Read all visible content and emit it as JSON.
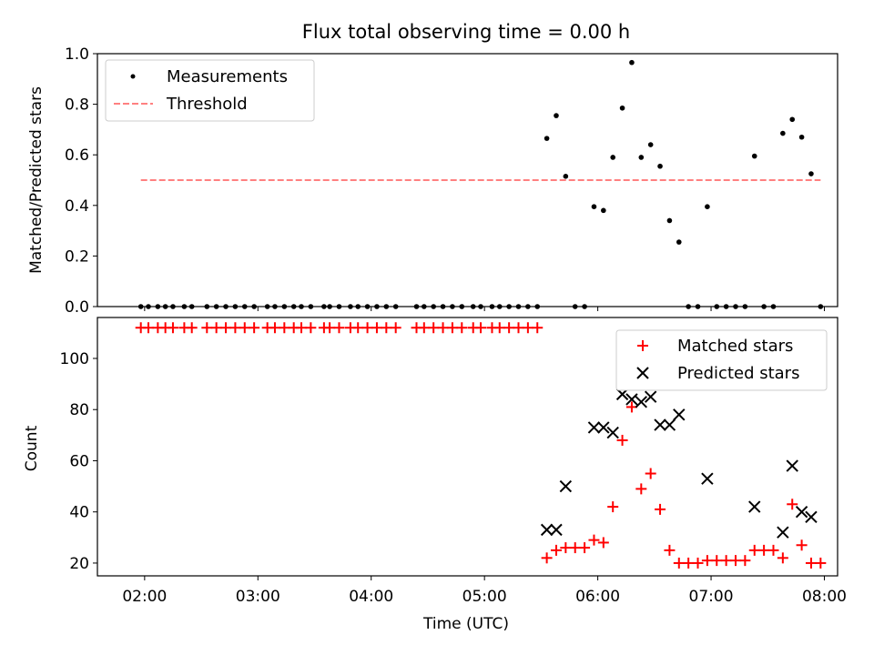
{
  "chart_data": [
    {
      "type": "scatter",
      "title": "Flux total observing time = 0.00 h",
      "xlabel": "",
      "ylabel": "Matched/Predicted stars",
      "xlim": [
        "01:35",
        "08:07"
      ],
      "ylim": [
        0,
        1.0
      ],
      "yticks": [
        "0.0",
        "0.2",
        "0.4",
        "0.6",
        "0.8",
        "1.0"
      ],
      "legend": "top-left",
      "series": [
        {
          "name": "Measurements",
          "color": "#000000",
          "marker": "dot",
          "points": [
            [
              "01:58",
              0
            ],
            [
              "02:02",
              0
            ],
            [
              "02:07",
              0
            ],
            [
              "02:11",
              0
            ],
            [
              "02:15",
              0
            ],
            [
              "02:21",
              0
            ],
            [
              "02:25",
              0
            ],
            [
              "02:33",
              0
            ],
            [
              "02:38",
              0
            ],
            [
              "02:43",
              0
            ],
            [
              "02:48",
              0
            ],
            [
              "02:53",
              0
            ],
            [
              "02:58",
              0
            ],
            [
              "03:05",
              0
            ],
            [
              "03:09",
              0
            ],
            [
              "03:14",
              0
            ],
            [
              "03:19",
              0
            ],
            [
              "03:23",
              0
            ],
            [
              "03:28",
              0
            ],
            [
              "03:35",
              0
            ],
            [
              "03:38",
              0
            ],
            [
              "03:43",
              0
            ],
            [
              "03:49",
              0
            ],
            [
              "03:53",
              0
            ],
            [
              "03:58",
              0
            ],
            [
              "04:03",
              0
            ],
            [
              "04:08",
              0
            ],
            [
              "04:13",
              0
            ],
            [
              "04:24",
              0
            ],
            [
              "04:28",
              0
            ],
            [
              "04:33",
              0
            ],
            [
              "04:38",
              0
            ],
            [
              "04:43",
              0
            ],
            [
              "04:48",
              0
            ],
            [
              "04:54",
              0
            ],
            [
              "04:58",
              0
            ],
            [
              "05:04",
              0
            ],
            [
              "05:08",
              0
            ],
            [
              "05:13",
              0
            ],
            [
              "05:18",
              0
            ],
            [
              "05:23",
              0
            ],
            [
              "05:28",
              0
            ],
            [
              "05:33",
              0.665
            ],
            [
              "05:38",
              0.755
            ],
            [
              "05:43",
              0.515
            ],
            [
              "05:48",
              0
            ],
            [
              "05:53",
              0
            ],
            [
              "05:58",
              0.395
            ],
            [
              "06:03",
              0.38
            ],
            [
              "06:08",
              0.59
            ],
            [
              "06:13",
              0.785
            ],
            [
              "06:18",
              0.965
            ],
            [
              "06:23",
              0.59
            ],
            [
              "06:28",
              0.64
            ],
            [
              "06:33",
              0.555
            ],
            [
              "06:38",
              0.34
            ],
            [
              "06:43",
              0.255
            ],
            [
              "06:48",
              0
            ],
            [
              "06:53",
              0
            ],
            [
              "06:58",
              0.395
            ],
            [
              "07:03",
              0
            ],
            [
              "07:08",
              0
            ],
            [
              "07:13",
              0
            ],
            [
              "07:18",
              0
            ],
            [
              "07:23",
              0.595
            ],
            [
              "07:28",
              0
            ],
            [
              "07:33",
              0
            ],
            [
              "07:38",
              0.685
            ],
            [
              "07:43",
              0.74
            ],
            [
              "07:48",
              0.67
            ],
            [
              "07:53",
              0.525
            ],
            [
              "07:58",
              0
            ]
          ]
        },
        {
          "name": "Threshold",
          "color": "#ff8080",
          "line": "dashed",
          "points": [
            [
              "01:58",
              0.5
            ],
            [
              "07:58",
              0.5
            ]
          ]
        }
      ]
    },
    {
      "type": "scatter",
      "title": "",
      "xlabel": "Time (UTC)",
      "ylabel": "Count",
      "xlim": [
        "01:35",
        "08:07"
      ],
      "ylim": [
        15,
        116
      ],
      "yticks": [
        "20",
        "40",
        "60",
        "80",
        "100"
      ],
      "xticks": [
        "02:00",
        "03:00",
        "04:00",
        "05:00",
        "06:00",
        "07:00",
        "08:00"
      ],
      "legend": "top-right",
      "series": [
        {
          "name": "Matched stars",
          "color": "#ff0000",
          "marker": "plus",
          "points": [
            [
              "01:58",
              112
            ],
            [
              "02:02",
              112
            ],
            [
              "02:07",
              112
            ],
            [
              "02:11",
              112
            ],
            [
              "02:15",
              112
            ],
            [
              "02:21",
              112
            ],
            [
              "02:25",
              112
            ],
            [
              "02:33",
              112
            ],
            [
              "02:38",
              112
            ],
            [
              "02:43",
              112
            ],
            [
              "02:48",
              112
            ],
            [
              "02:53",
              112
            ],
            [
              "02:58",
              112
            ],
            [
              "03:05",
              112
            ],
            [
              "03:09",
              112
            ],
            [
              "03:14",
              112
            ],
            [
              "03:19",
              112
            ],
            [
              "03:23",
              112
            ],
            [
              "03:28",
              112
            ],
            [
              "03:35",
              112
            ],
            [
              "03:38",
              112
            ],
            [
              "03:43",
              112
            ],
            [
              "03:49",
              112
            ],
            [
              "03:53",
              112
            ],
            [
              "03:58",
              112
            ],
            [
              "04:03",
              112
            ],
            [
              "04:08",
              112
            ],
            [
              "04:13",
              112
            ],
            [
              "04:24",
              112
            ],
            [
              "04:28",
              112
            ],
            [
              "04:33",
              112
            ],
            [
              "04:38",
              112
            ],
            [
              "04:43",
              112
            ],
            [
              "04:48",
              112
            ],
            [
              "04:54",
              112
            ],
            [
              "04:58",
              112
            ],
            [
              "05:04",
              112
            ],
            [
              "05:08",
              112
            ],
            [
              "05:13",
              112
            ],
            [
              "05:18",
              112
            ],
            [
              "05:23",
              112
            ],
            [
              "05:28",
              112
            ],
            [
              "05:33",
              22
            ],
            [
              "05:38",
              25
            ],
            [
              "05:43",
              26
            ],
            [
              "05:48",
              26
            ],
            [
              "05:53",
              26
            ],
            [
              "05:58",
              29
            ],
            [
              "06:03",
              28
            ],
            [
              "06:08",
              42
            ],
            [
              "06:13",
              68
            ],
            [
              "06:18",
              81
            ],
            [
              "06:23",
              49
            ],
            [
              "06:28",
              55
            ],
            [
              "06:33",
              41
            ],
            [
              "06:38",
              25
            ],
            [
              "06:43",
              20
            ],
            [
              "06:48",
              20
            ],
            [
              "06:53",
              20
            ],
            [
              "06:58",
              21
            ],
            [
              "07:03",
              21
            ],
            [
              "07:08",
              21
            ],
            [
              "07:13",
              21
            ],
            [
              "07:18",
              21
            ],
            [
              "07:23",
              25
            ],
            [
              "07:28",
              25
            ],
            [
              "07:33",
              25
            ],
            [
              "07:38",
              22
            ],
            [
              "07:43",
              43
            ],
            [
              "07:48",
              27
            ],
            [
              "07:53",
              20
            ],
            [
              "07:58",
              20
            ]
          ]
        },
        {
          "name": "Predicted stars",
          "color": "#000000",
          "marker": "x",
          "points": [
            [
              "05:33",
              33
            ],
            [
              "05:38",
              33
            ],
            [
              "05:43",
              50
            ],
            [
              "05:58",
              73
            ],
            [
              "06:03",
              73
            ],
            [
              "06:08",
              71
            ],
            [
              "06:13",
              86
            ],
            [
              "06:18",
              84
            ],
            [
              "06:23",
              83
            ],
            [
              "06:28",
              85
            ],
            [
              "06:33",
              74
            ],
            [
              "06:38",
              74
            ],
            [
              "06:43",
              78
            ],
            [
              "06:58",
              53
            ],
            [
              "07:23",
              42
            ],
            [
              "07:38",
              32
            ],
            [
              "07:43",
              58
            ],
            [
              "07:48",
              40
            ],
            [
              "07:53",
              38
            ]
          ]
        }
      ]
    }
  ]
}
